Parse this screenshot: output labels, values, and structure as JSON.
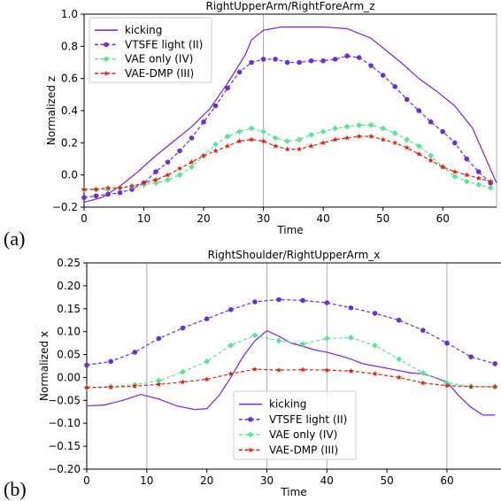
{
  "panels": [
    {
      "label": "(a)"
    },
    {
      "label": "(b)"
    }
  ],
  "chart_data": [
    {
      "type": "line",
      "title": "RightUpperArm/RightForeArm_z",
      "xlabel": "Time",
      "ylabel": "Normalized z",
      "xlim": [
        0,
        69
      ],
      "ylim": [
        -0.2,
        1.0
      ],
      "xticks": [
        0,
        10,
        20,
        30,
        40,
        50,
        60
      ],
      "yticks": [
        -0.2,
        0.0,
        0.2,
        0.4,
        0.6,
        0.8,
        1.0
      ],
      "xtick_labels": [
        "0",
        "10",
        "20",
        "30",
        "40",
        "50",
        "60"
      ],
      "ytick_labels": [
        "−0.2",
        "0.0",
        "0.2",
        "0.4",
        "0.6",
        "0.8",
        "1.0"
      ],
      "vlines": [
        30,
        69
      ],
      "legend_position": "upper-left",
      "series": [
        {
          "name": "kicking",
          "color": "#7f1fd6",
          "style": "solid",
          "marker": "none",
          "x": [
            0,
            3,
            6,
            9,
            12,
            15,
            18,
            21,
            24,
            27,
            28,
            30,
            33,
            36,
            40,
            44,
            48,
            50,
            53,
            56,
            59,
            62,
            65,
            67,
            69
          ],
          "y": [
            -0.17,
            -0.14,
            -0.07,
            0.02,
            0.12,
            0.21,
            0.3,
            0.41,
            0.57,
            0.75,
            0.84,
            0.9,
            0.92,
            0.92,
            0.92,
            0.91,
            0.85,
            0.79,
            0.7,
            0.6,
            0.52,
            0.43,
            0.29,
            0.12,
            -0.05
          ]
        },
        {
          "name": "VTSFE light (II)",
          "color": "#6a2fd8",
          "style": "dashed",
          "marker": "circle",
          "x": [
            0,
            2,
            4,
            6,
            8,
            10,
            12,
            14,
            16,
            18,
            20,
            22,
            24,
            26,
            28,
            30,
            32,
            34,
            36,
            38,
            40,
            42,
            44,
            46,
            48,
            50,
            52,
            54,
            56,
            58,
            60,
            62,
            64,
            66,
            68
          ],
          "y": [
            -0.14,
            -0.13,
            -0.12,
            -0.11,
            -0.09,
            -0.05,
            0.02,
            0.08,
            0.15,
            0.23,
            0.33,
            0.43,
            0.54,
            0.64,
            0.7,
            0.72,
            0.72,
            0.7,
            0.7,
            0.71,
            0.71,
            0.72,
            0.74,
            0.73,
            0.68,
            0.62,
            0.55,
            0.47,
            0.4,
            0.33,
            0.27,
            0.2,
            0.1,
            0.02,
            -0.05
          ]
        },
        {
          "name": "VAE only (IV)",
          "color": "#5ee29a",
          "style": "dashed",
          "marker": "diamond",
          "x": [
            0,
            2,
            4,
            6,
            8,
            10,
            12,
            14,
            16,
            18,
            20,
            22,
            24,
            26,
            28,
            30,
            32,
            34,
            36,
            38,
            40,
            42,
            44,
            46,
            48,
            50,
            52,
            54,
            56,
            58,
            60,
            62,
            64,
            66,
            68
          ],
          "y": [
            -0.09,
            -0.09,
            -0.09,
            -0.08,
            -0.07,
            -0.06,
            -0.05,
            -0.03,
            0.0,
            0.05,
            0.12,
            0.19,
            0.24,
            0.27,
            0.29,
            0.27,
            0.23,
            0.21,
            0.22,
            0.25,
            0.27,
            0.29,
            0.3,
            0.31,
            0.31,
            0.29,
            0.26,
            0.22,
            0.18,
            0.12,
            0.05,
            -0.01,
            -0.04,
            -0.06,
            -0.08
          ]
        },
        {
          "name": "VAE-DMP (III)",
          "color": "#dd2211",
          "style": "dashed",
          "marker": "star",
          "x": [
            0,
            2,
            4,
            6,
            8,
            10,
            12,
            14,
            16,
            18,
            20,
            22,
            24,
            26,
            28,
            30,
            32,
            34,
            36,
            38,
            40,
            42,
            44,
            46,
            48,
            50,
            52,
            54,
            56,
            58,
            60,
            62,
            64,
            66,
            68
          ],
          "y": [
            -0.09,
            -0.09,
            -0.08,
            -0.08,
            -0.07,
            -0.05,
            -0.03,
            0.0,
            0.04,
            0.08,
            0.12,
            0.15,
            0.18,
            0.21,
            0.22,
            0.21,
            0.18,
            0.16,
            0.16,
            0.18,
            0.2,
            0.22,
            0.23,
            0.24,
            0.24,
            0.22,
            0.2,
            0.17,
            0.13,
            0.09,
            0.05,
            0.02,
            0.0,
            -0.02,
            -0.04
          ]
        }
      ]
    },
    {
      "type": "line",
      "title": "RightShoulder/RightUpperArm_x",
      "xlabel": "Time",
      "ylabel": "Normalized x",
      "xlim": [
        0,
        69
      ],
      "ylim": [
        -0.2,
        0.25
      ],
      "xticks": [
        0,
        10,
        20,
        30,
        40,
        50,
        60
      ],
      "yticks": [
        -0.2,
        -0.15,
        -0.1,
        -0.05,
        0.0,
        0.05,
        0.1,
        0.15,
        0.2,
        0.25
      ],
      "xtick_labels": [
        "0",
        "10",
        "20",
        "30",
        "40",
        "50",
        "60"
      ],
      "ytick_labels": [
        "−0.20",
        "−0.15",
        "−0.10",
        "−0.05",
        "0.00",
        "0.05",
        "0.10",
        "0.15",
        "0.20",
        "0.25"
      ],
      "vlines": [
        10,
        30,
        40,
        60
      ],
      "legend_position": "lower-center",
      "series": [
        {
          "name": "kicking",
          "color": "#7f1fd6",
          "style": "solid",
          "marker": "none",
          "x": [
            0,
            3,
            6,
            9,
            12,
            15,
            18,
            20,
            22,
            24,
            26,
            28,
            30,
            32,
            34,
            36,
            38,
            40,
            42,
            44,
            46,
            48,
            50,
            52,
            54,
            56,
            58,
            60,
            62,
            64,
            66,
            68
          ],
          "y": [
            -0.062,
            -0.06,
            -0.05,
            -0.037,
            -0.047,
            -0.062,
            -0.07,
            -0.068,
            -0.04,
            0.0,
            0.045,
            0.08,
            0.102,
            0.09,
            0.075,
            0.068,
            0.06,
            0.055,
            0.048,
            0.04,
            0.03,
            0.025,
            0.02,
            0.015,
            0.01,
            0.008,
            0.0,
            -0.01,
            -0.04,
            -0.065,
            -0.082,
            -0.082
          ]
        },
        {
          "name": "VTSFE light (II)",
          "color": "#6a2fd8",
          "style": "dashed",
          "marker": "circle",
          "x": [
            0,
            4,
            8,
            12,
            16,
            20,
            24,
            28,
            32,
            36,
            40,
            44,
            48,
            52,
            56,
            60,
            64,
            68
          ],
          "y": [
            0.027,
            0.035,
            0.055,
            0.085,
            0.108,
            0.128,
            0.148,
            0.165,
            0.17,
            0.168,
            0.163,
            0.152,
            0.14,
            0.125,
            0.103,
            0.075,
            0.045,
            0.03
          ]
        },
        {
          "name": "VAE only (IV)",
          "color": "#5ee29a",
          "style": "dashed",
          "marker": "diamond",
          "x": [
            0,
            4,
            8,
            12,
            16,
            20,
            24,
            28,
            32,
            36,
            40,
            44,
            48,
            52,
            56,
            60,
            64,
            68
          ],
          "y": [
            -0.022,
            -0.02,
            -0.016,
            -0.007,
            0.012,
            0.035,
            0.07,
            0.092,
            0.08,
            0.073,
            0.085,
            0.087,
            0.07,
            0.04,
            0.01,
            -0.012,
            -0.02,
            -0.021
          ]
        },
        {
          "name": "VAE-DMP (III)",
          "color": "#dd2211",
          "style": "dashed",
          "marker": "star",
          "x": [
            0,
            4,
            8,
            12,
            16,
            20,
            24,
            28,
            32,
            36,
            40,
            44,
            48,
            52,
            56,
            60,
            64,
            68
          ],
          "y": [
            -0.022,
            -0.021,
            -0.019,
            -0.015,
            -0.01,
            -0.004,
            0.008,
            0.018,
            0.016,
            0.017,
            0.016,
            0.014,
            0.008,
            0.0,
            -0.012,
            -0.018,
            -0.02,
            -0.02
          ]
        }
      ]
    }
  ]
}
